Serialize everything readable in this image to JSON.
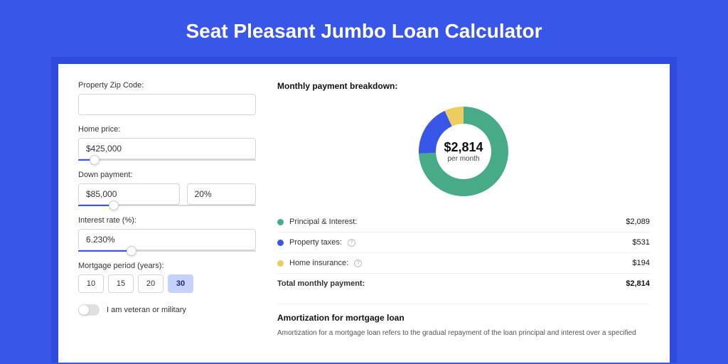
{
  "page": {
    "title": "Seat Pleasant Jumbo Loan Calculator",
    "bg_color": "#3857e8",
    "card_shadow_color": "#2e4ae0",
    "card_bg": "#ffffff"
  },
  "form": {
    "zip": {
      "label": "Property Zip Code:",
      "value": ""
    },
    "home_price": {
      "label": "Home price:",
      "value": "$425,000",
      "slider_pct": 9
    },
    "down_payment": {
      "label": "Down payment:",
      "amount": "$85,000",
      "percent": "20%",
      "slider_pct": 20
    },
    "interest_rate": {
      "label": "Interest rate (%):",
      "value": "6.230%",
      "slider_pct": 30
    },
    "mortgage_period": {
      "label": "Mortgage period (years):",
      "options": [
        "10",
        "15",
        "20",
        "30"
      ],
      "selected": "30"
    },
    "veteran": {
      "label": "I am veteran or military",
      "checked": false
    }
  },
  "breakdown": {
    "title": "Monthly payment breakdown:",
    "center_amount": "$2,814",
    "center_sub": "per month",
    "donut": {
      "size": 126,
      "thickness": 24,
      "segments": [
        {
          "name": "principal_interest",
          "value": 2089,
          "color": "#47ab87",
          "start_angle": 0
        },
        {
          "name": "property_taxes",
          "value": 531,
          "color": "#3857e8",
          "start_angle": 267
        },
        {
          "name": "home_insurance",
          "value": 194,
          "color": "#eccd5f",
          "start_angle": 335
        }
      ]
    },
    "items": [
      {
        "label": "Principal & Interest:",
        "value": "$2,089",
        "color": "#47ab87",
        "info": false
      },
      {
        "label": "Property taxes:",
        "value": "$531",
        "color": "#3857e8",
        "info": true
      },
      {
        "label": "Home insurance:",
        "value": "$194",
        "color": "#eccd5f",
        "info": true
      }
    ],
    "total": {
      "label": "Total monthly payment:",
      "value": "$2,814"
    }
  },
  "amortization": {
    "title": "Amortization for mortgage loan",
    "text": "Amortization for a mortgage loan refers to the gradual repayment of the loan principal and interest over a specified"
  }
}
